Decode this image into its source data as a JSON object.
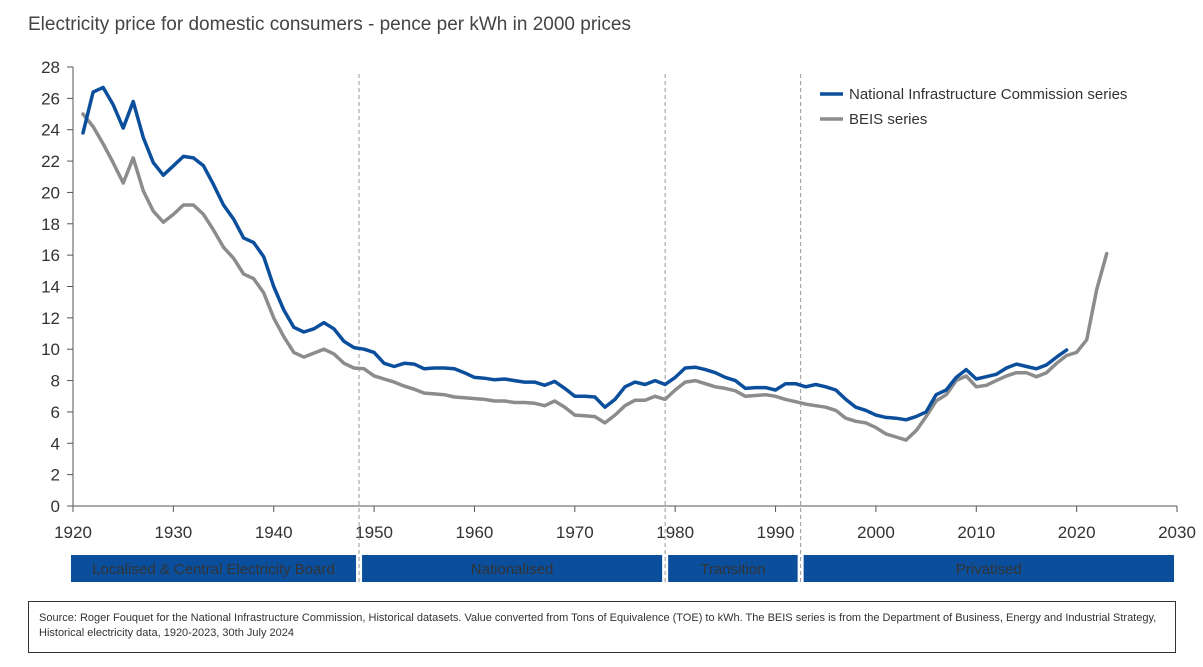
{
  "title": "Electricity price for domestic consumers - pence per kWh in 2000 prices",
  "source_note": "Source: Roger Fouquet for the National Infrastructure Commission, Historical datasets. Value converted from  Tons of Equivalence (TOE) to kWh. The BEIS series is from the Department of Business, Energy and Industrial Strategy, Historical electricity data, 1920-2023, 30th July 2024",
  "colors": {
    "nic": "#0b4f9c",
    "beis": "#8c8c8c",
    "band": "#0b4f9c",
    "band_text": "#ffffff"
  },
  "chart_data": {
    "type": "line",
    "xlim": [
      1920,
      2030
    ],
    "ylim": [
      0,
      28
    ],
    "x_ticks": [
      1920,
      1930,
      1940,
      1950,
      1960,
      1970,
      1980,
      1990,
      2000,
      2010,
      2020,
      2030
    ],
    "y_ticks": [
      0,
      2,
      4,
      6,
      8,
      10,
      12,
      14,
      16,
      18,
      20,
      22,
      24,
      26,
      28
    ],
    "legend_position": "top-right",
    "period_dividers": [
      1948.5,
      1979,
      1992.5
    ],
    "periods": [
      {
        "label": "Localised & Central Electricity Board",
        "start": 1919.5,
        "end": 1948.5
      },
      {
        "label": "Nationalised",
        "start": 1948.5,
        "end": 1979
      },
      {
        "label": "Transition",
        "start": 1979,
        "end": 1992.5
      },
      {
        "label": "Privatised",
        "start": 1992.5,
        "end": 2030
      }
    ],
    "series": [
      {
        "name": "National Infrastructure Commission series",
        "color": "#0b4f9c",
        "x": [
          1921,
          1922,
          1923,
          1924,
          1925,
          1926,
          1927,
          1928,
          1929,
          1930,
          1931,
          1932,
          1933,
          1934,
          1935,
          1936,
          1937,
          1938,
          1939,
          1940,
          1941,
          1942,
          1943,
          1944,
          1945,
          1946,
          1947,
          1948,
          1949,
          1950,
          1951,
          1952,
          1953,
          1954,
          1955,
          1956,
          1957,
          1958,
          1959,
          1960,
          1961,
          1962,
          1963,
          1964,
          1965,
          1966,
          1967,
          1968,
          1969,
          1970,
          1971,
          1972,
          1973,
          1974,
          1975,
          1976,
          1977,
          1978,
          1979,
          1980,
          1981,
          1982,
          1983,
          1984,
          1985,
          1986,
          1987,
          1988,
          1989,
          1990,
          1991,
          1992,
          1993,
          1994,
          1995,
          1996,
          1997,
          1998,
          1999,
          2000,
          2001,
          2002,
          2003,
          2004,
          2005,
          2006,
          2007,
          2008,
          2009,
          2010,
          2011,
          2012,
          2013,
          2014,
          2015,
          2016,
          2017,
          2018,
          2019
        ],
        "values": [
          23.8,
          26.4,
          26.7,
          25.6,
          24.1,
          25.8,
          23.5,
          21.9,
          21.1,
          21.7,
          22.3,
          22.2,
          21.7,
          20.5,
          19.2,
          18.3,
          17.1,
          16.8,
          15.9,
          14,
          12.5,
          11.4,
          11.1,
          11.3,
          11.7,
          11.3,
          10.5,
          10.1,
          10,
          9.8,
          9.1,
          8.9,
          9.1,
          9.05,
          8.75,
          8.8,
          8.8,
          8.75,
          8.5,
          8.2,
          8.15,
          8.05,
          8.1,
          8.0,
          7.9,
          7.9,
          7.7,
          7.95,
          7.5,
          7.0,
          7.0,
          6.95,
          6.3,
          6.8,
          7.6,
          7.9,
          7.75,
          8.0,
          7.75,
          8.2,
          8.8,
          8.85,
          8.7,
          8.5,
          8.2,
          8.0,
          7.5,
          7.55,
          7.55,
          7.4,
          7.8,
          7.8,
          7.6,
          7.75,
          7.6,
          7.4,
          6.8,
          6.3,
          6.1,
          5.8,
          5.65,
          5.6,
          5.5,
          5.7,
          6.0,
          7.1,
          7.4,
          8.2,
          8.7,
          8.1,
          8.25,
          8.4,
          8.8,
          9.05,
          8.9,
          8.75,
          9.0,
          9.5,
          9.95
        ]
      },
      {
        "name": "BEIS series",
        "color": "#8c8c8c",
        "x": [
          1921,
          1922,
          1923,
          1924,
          1925,
          1926,
          1927,
          1928,
          1929,
          1930,
          1931,
          1932,
          1933,
          1934,
          1935,
          1936,
          1937,
          1938,
          1939,
          1940,
          1941,
          1942,
          1943,
          1944,
          1945,
          1946,
          1947,
          1948,
          1949,
          1950,
          1951,
          1952,
          1953,
          1954,
          1955,
          1956,
          1957,
          1958,
          1959,
          1960,
          1961,
          1962,
          1963,
          1964,
          1965,
          1966,
          1967,
          1968,
          1969,
          1970,
          1971,
          1972,
          1973,
          1974,
          1975,
          1976,
          1977,
          1978,
          1979,
          1980,
          1981,
          1982,
          1983,
          1984,
          1985,
          1986,
          1987,
          1988,
          1989,
          1990,
          1991,
          1992,
          1993,
          1994,
          1995,
          1996,
          1997,
          1998,
          1999,
          2000,
          2001,
          2002,
          2003,
          2004,
          2005,
          2006,
          2007,
          2008,
          2009,
          2010,
          2011,
          2012,
          2013,
          2014,
          2015,
          2016,
          2017,
          2018,
          2019,
          2020,
          2021,
          2022,
          2023
        ],
        "values": [
          25.0,
          24.2,
          23.1,
          21.9,
          20.6,
          22.2,
          20.1,
          18.8,
          18.1,
          18.6,
          19.2,
          19.2,
          18.6,
          17.6,
          16.5,
          15.8,
          14.8,
          14.5,
          13.6,
          12.0,
          10.8,
          9.8,
          9.5,
          9.75,
          10.0,
          9.7,
          9.1,
          8.8,
          8.75,
          8.3,
          8.1,
          7.9,
          7.65,
          7.45,
          7.2,
          7.15,
          7.1,
          6.95,
          6.9,
          6.85,
          6.8,
          6.7,
          6.7,
          6.6,
          6.6,
          6.55,
          6.4,
          6.7,
          6.3,
          5.8,
          5.75,
          5.7,
          5.3,
          5.8,
          6.4,
          6.75,
          6.75,
          7.0,
          6.8,
          7.4,
          7.9,
          8.0,
          7.8,
          7.6,
          7.5,
          7.35,
          7.0,
          7.05,
          7.1,
          7.0,
          6.8,
          6.65,
          6.5,
          6.4,
          6.3,
          6.1,
          5.6,
          5.4,
          5.3,
          5.0,
          4.6,
          4.4,
          4.2,
          4.8,
          5.7,
          6.7,
          7.1,
          8.0,
          8.3,
          7.6,
          7.7,
          8.0,
          8.3,
          8.5,
          8.5,
          8.25,
          8.5,
          9.1,
          9.6,
          9.8,
          10.6,
          13.8,
          16.1
        ]
      }
    ]
  }
}
